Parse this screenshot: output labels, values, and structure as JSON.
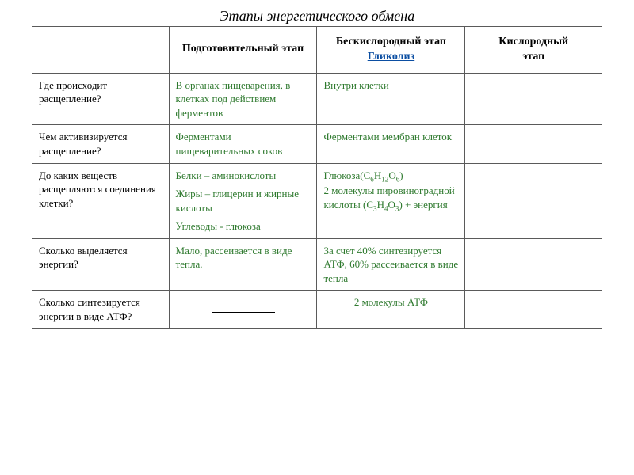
{
  "title": "Этапы энергетического обмена",
  "headers": {
    "h0": " ",
    "h1": "Подготовительный этап",
    "h2_pre": "Бескислородный этап ",
    "h2_link": "Гликолиз",
    "h3_l1": "Кислородный",
    "h3_l2": "этап"
  },
  "rows": {
    "r0": {
      "q": "Где происходит расщепление?",
      "a1": "В органах пищеварения, в клетках под действием ферментов",
      "a2": "Внутри клетки",
      "a3": ""
    },
    "r1": {
      "q": "Чем активизируется расщепление?",
      "a1": "Ферментами пищеварительных соков",
      "a2": "Ферментами мембран клеток",
      "a3": ""
    },
    "r2": {
      "q": "До каких веществ расщепляются соединения клетки?",
      "a1_l1": "Белки – аминокислоты",
      "a1_l2": "Жиры – глицерин и жирные кислоты",
      "a1_l3": "Углеводы - глюкоза",
      "a2_pre": "Глюкоза(C",
      "a2_f1": "6",
      "a2_h": "H",
      "a2_f2": "12",
      "a2_o": "O",
      "a2_f3": "6",
      "a2_close": ")",
      "a2_mid": " 2 молекулы пировиноградной кислоты (C",
      "a2_f4": "3",
      "a2_h2": "H",
      "a2_f5": "4",
      "a2_o2": "O",
      "a2_f6": "3",
      "a2_end": ") + энергия",
      "a3": ""
    },
    "r3": {
      "q": "Сколько выделяется энергии?",
      "a1": "Мало, рассеивается в виде тепла.",
      "a2": "За счет 40% синтезируется АТФ, 60% рассеивается в виде тепла",
      "a3": ""
    },
    "r4": {
      "q": "Сколько синтезируется энергии в виде АТФ?",
      "a2": "2 молекулы АТФ",
      "a3": ""
    }
  },
  "colors": {
    "green": "#2f7a2f",
    "link": "#0b4ea2",
    "border": "#5a5a5a",
    "text": "#000000",
    "bg": "#ffffff"
  }
}
